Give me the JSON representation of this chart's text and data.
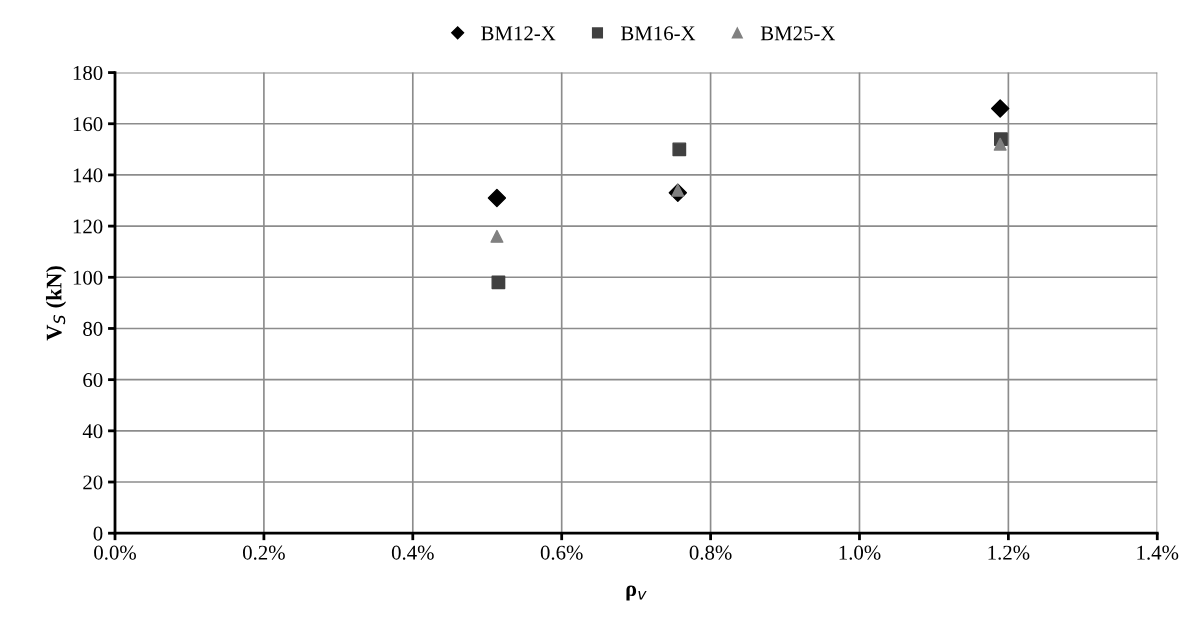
{
  "chart_data": {
    "type": "scatter",
    "xlabel": "ρ$_{v}$",
    "ylabel": "V$_{S}$ (kN)",
    "series": [
      {
        "name": "BM12-X",
        "color": "#000000",
        "marker": "diamond",
        "x": [
          0.513,
          0.756,
          1.189
        ],
        "values": [
          131,
          133,
          166
        ]
      },
      {
        "name": "BM16-X",
        "color": "#404040",
        "marker": "square",
        "x": [
          0.515,
          0.758,
          1.19
        ],
        "values": [
          98,
          150,
          154
        ]
      },
      {
        "name": "BM25-X",
        "color": "#808080",
        "marker": "triangle",
        "x": [
          0.513,
          0.756,
          1.189
        ],
        "values": [
          116,
          134,
          152
        ]
      }
    ],
    "xlim": [
      0,
      1.4
    ],
    "xticks": [
      {
        "value": 0,
        "label": "0.0%"
      },
      {
        "value": 0.2,
        "label": "0.2%"
      },
      {
        "value": 0.4,
        "label": "0.4%"
      },
      {
        "value": 0.6,
        "label": "0.6%"
      },
      {
        "value": 0.8,
        "label": "0.8%"
      },
      {
        "value": 1.0,
        "label": "1.0%"
      },
      {
        "value": 1.2,
        "label": "1.2%"
      },
      {
        "value": 1.4,
        "label": "1.4%"
      }
    ],
    "ylim": [
      0,
      180
    ],
    "yticks": [
      0,
      20,
      40,
      60,
      80,
      100,
      120,
      140,
      160,
      180
    ],
    "grid": true,
    "legend": "top"
  }
}
